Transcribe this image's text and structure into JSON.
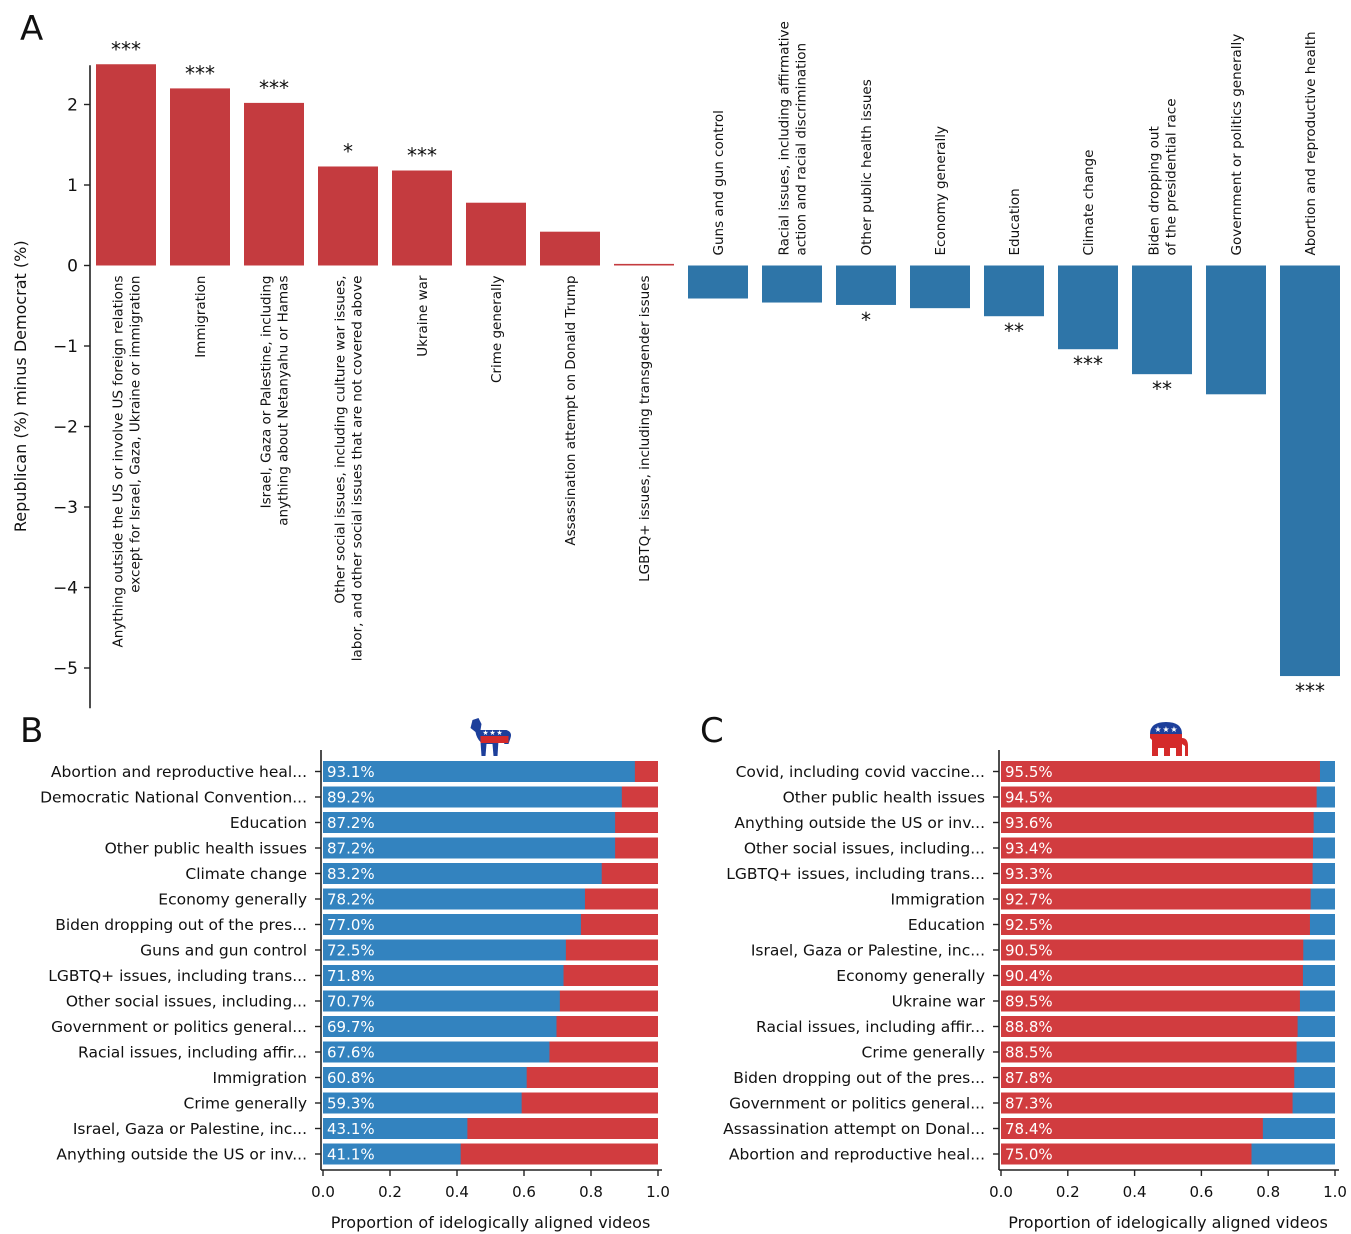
{
  "colors": {
    "democrat": "#3383bf",
    "republican": "#d13c3f",
    "barA_red": "#c43b3f",
    "barA_blue": "#2e75a8",
    "axis": "#222222"
  },
  "chart_data": [
    {
      "panel": "A",
      "type": "bar",
      "ylabel": "Republican (%) minus Democrat (%)",
      "ylim": [
        -5.5,
        2.5
      ],
      "yticks": [
        2,
        1,
        0,
        -1,
        -2,
        -3,
        -4,
        -5
      ],
      "ytick_labels": [
        "2",
        "1",
        "0",
        "−1",
        "−2",
        "−3",
        "−4",
        "−5"
      ],
      "categories": [
        [
          "Anything outside the US or involve US foreign relations",
          "except for Israel, Gaza, Ukraine or immigration"
        ],
        [
          "Immigration"
        ],
        [
          "Israel, Gaza or Palestine, including",
          "anything about Netanyahu or Hamas"
        ],
        [
          "Other social issues, including culture war issues,",
          "labor, and other social issues that are not covered above"
        ],
        [
          "Ukraine war"
        ],
        [
          "Crime generally"
        ],
        [
          "Assassination attempt on Donald Trump"
        ],
        [
          "LGBTQ+ issues, including transgender issues"
        ],
        [
          "Guns and gun control"
        ],
        [
          "Racial issues, including affirmative",
          "action and racial discrimination"
        ],
        [
          "Other public health issues"
        ],
        [
          "Economy generally"
        ],
        [
          "Education"
        ],
        [
          "Climate change"
        ],
        [
          "Biden dropping out",
          "of the presidential race"
        ],
        [
          "Government or politics generally"
        ],
        [
          "Abortion and reproductive health"
        ]
      ],
      "values": [
        2.5,
        2.2,
        2.02,
        1.23,
        1.18,
        0.78,
        0.42,
        0.02,
        -0.41,
        -0.46,
        -0.49,
        -0.53,
        -0.63,
        -1.04,
        -1.35,
        -1.6,
        -5.1
      ],
      "significance": [
        "***",
        "***",
        "***",
        "*",
        "***",
        "",
        "",
        "",
        "",
        "",
        "*",
        "",
        "**",
        "***",
        "**",
        "",
        "***"
      ]
    },
    {
      "panel": "B",
      "type": "bar",
      "orientation": "horizontal-stacked",
      "icon": "donkey-icon",
      "xlabel": "Proportion of idelogically aligned videos",
      "xlim": [
        0,
        1
      ],
      "xticks": [
        "0.0",
        "0.2",
        "0.4",
        "0.6",
        "0.8",
        "1.0"
      ],
      "categories": [
        "Abortion and reproductive heal...",
        "Democratic National Convention...",
        "Education",
        "Other public health issues",
        "Climate change",
        "Economy generally",
        "Biden dropping out of the pres...",
        "Guns and gun control",
        "LGBTQ+ issues, including trans...",
        "Other social issues, including...",
        "Government or politics general...",
        "Racial issues, including affir...",
        "Immigration",
        "Crime generally",
        "Israel, Gaza or Palestine, inc...",
        "Anything outside the US or inv..."
      ],
      "values": [
        0.931,
        0.892,
        0.872,
        0.872,
        0.832,
        0.782,
        0.77,
        0.725,
        0.718,
        0.707,
        0.697,
        0.676,
        0.608,
        0.593,
        0.431,
        0.411
      ],
      "value_labels": [
        "93.1%",
        "89.2%",
        "87.2%",
        "87.2%",
        "83.2%",
        "78.2%",
        "77.0%",
        "72.5%",
        "71.8%",
        "70.7%",
        "69.7%",
        "67.6%",
        "60.8%",
        "59.3%",
        "43.1%",
        "41.1%"
      ]
    },
    {
      "panel": "C",
      "type": "bar",
      "orientation": "horizontal-stacked",
      "icon": "elephant-icon",
      "xlabel": "Proportion of idelogically aligned videos",
      "xlim": [
        0,
        1
      ],
      "xticks": [
        "0.0",
        "0.2",
        "0.4",
        "0.6",
        "0.8",
        "1.0"
      ],
      "categories": [
        "Covid, including covid vaccine...",
        "Other public health issues",
        "Anything outside the US or inv...",
        "Other social issues, including...",
        "LGBTQ+ issues, including trans...",
        "Immigration",
        "Education",
        "Israel, Gaza or Palestine, inc...",
        "Economy generally",
        "Ukraine war",
        "Racial issues, including affir...",
        "Crime generally",
        "Biden dropping out of the pres...",
        "Government or politics general...",
        "Assassination attempt on Donal...",
        "Abortion and reproductive heal..."
      ],
      "values": [
        0.955,
        0.945,
        0.936,
        0.934,
        0.933,
        0.927,
        0.925,
        0.905,
        0.904,
        0.895,
        0.888,
        0.885,
        0.878,
        0.873,
        0.784,
        0.75
      ],
      "value_labels": [
        "95.5%",
        "94.5%",
        "93.6%",
        "93.4%",
        "93.3%",
        "92.7%",
        "92.5%",
        "90.5%",
        "90.4%",
        "89.5%",
        "88.8%",
        "88.5%",
        "87.8%",
        "87.3%",
        "78.4%",
        "75.0%"
      ]
    }
  ]
}
